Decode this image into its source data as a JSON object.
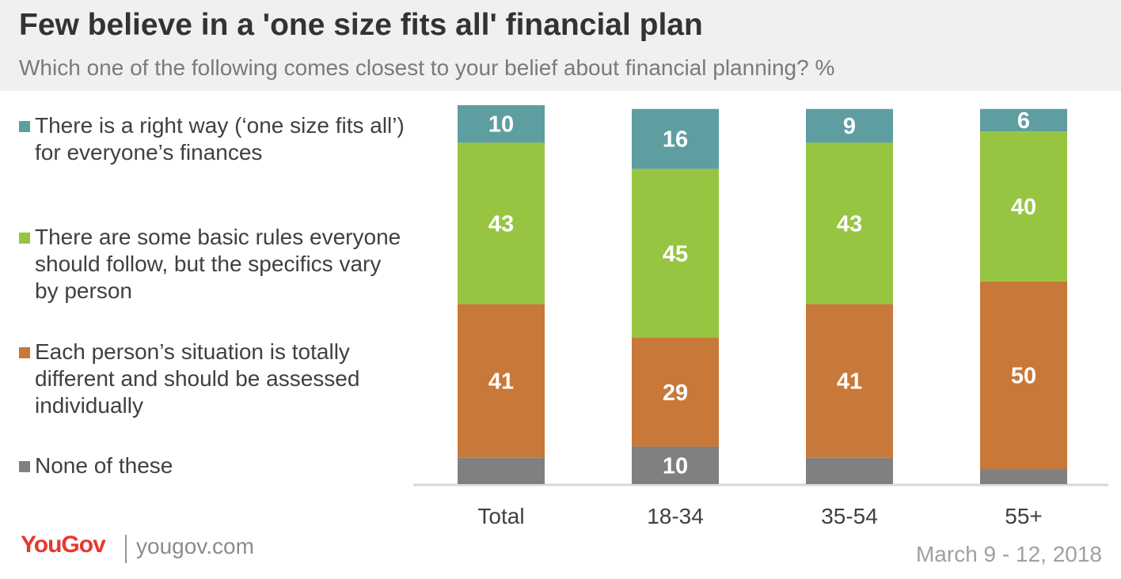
{
  "header": {
    "title": "Few believe in a 'one size fits all' financial plan",
    "subtitle": "Which one of the following comes closest to your belief about financial planning? %"
  },
  "legend": [
    {
      "label": "There is a right way (‘one size fits all’) for everyone’s finances",
      "color": "#5f9ea0"
    },
    {
      "label": "There are some basic rules everyone should follow, but the specifics vary by person",
      "color": "#97c541"
    },
    {
      "label": "Each person’s situation is totally different and should be assessed individually",
      "color": "#c87838"
    },
    {
      "label": "None of these",
      "color": "#808080"
    }
  ],
  "chart_data": {
    "type": "bar",
    "stacked": true,
    "categories": [
      "Total",
      "18-34",
      "35-54",
      "55+"
    ],
    "series": [
      {
        "name": "There is a right way (‘one size fits all’) for everyone’s finances",
        "color": "#5f9ea0",
        "values": [
          10,
          16,
          9,
          6
        ],
        "labels": [
          "10",
          "16",
          "9",
          "6"
        ]
      },
      {
        "name": "There are some basic rules everyone should follow, but the specifics vary by person",
        "color": "#97c541",
        "values": [
          43,
          45,
          43,
          40
        ],
        "labels": [
          "43",
          "45",
          "43",
          "40"
        ]
      },
      {
        "name": "Each person’s situation is totally different and should be assessed individually",
        "color": "#c87838",
        "values": [
          41,
          29,
          41,
          50
        ],
        "labels": [
          "41",
          "29",
          "41",
          "50"
        ]
      },
      {
        "name": "None of these",
        "color": "#808080",
        "values": [
          7,
          10,
          7,
          4
        ],
        "labels": [
          "",
          "10",
          "",
          ""
        ]
      }
    ],
    "ylim": [
      0,
      101
    ]
  },
  "footer": {
    "logo": "YouGov",
    "site": "yougov.com",
    "date": "March 9 - 12, 2018"
  }
}
